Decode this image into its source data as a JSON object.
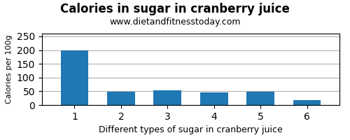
{
  "chart_data": {
    "type": "bar",
    "title": "Calories in sugar in cranberry juice",
    "subtitle": "www.dietandfitnesstoday.com",
    "xlabel": "Different types of sugar in cranberry juice",
    "ylabel": "Calories per 100g",
    "x": [
      1,
      2,
      3,
      4,
      5,
      6
    ],
    "values": [
      200,
      48,
      53,
      46,
      48,
      18
    ],
    "xlim": [
      0.3,
      6.7
    ],
    "xticks": [
      1,
      2,
      3,
      4,
      5,
      6
    ],
    "ylim": [
      0,
      260
    ],
    "yticks": [
      0,
      50,
      100,
      150,
      200,
      250
    ],
    "grid": true
  }
}
